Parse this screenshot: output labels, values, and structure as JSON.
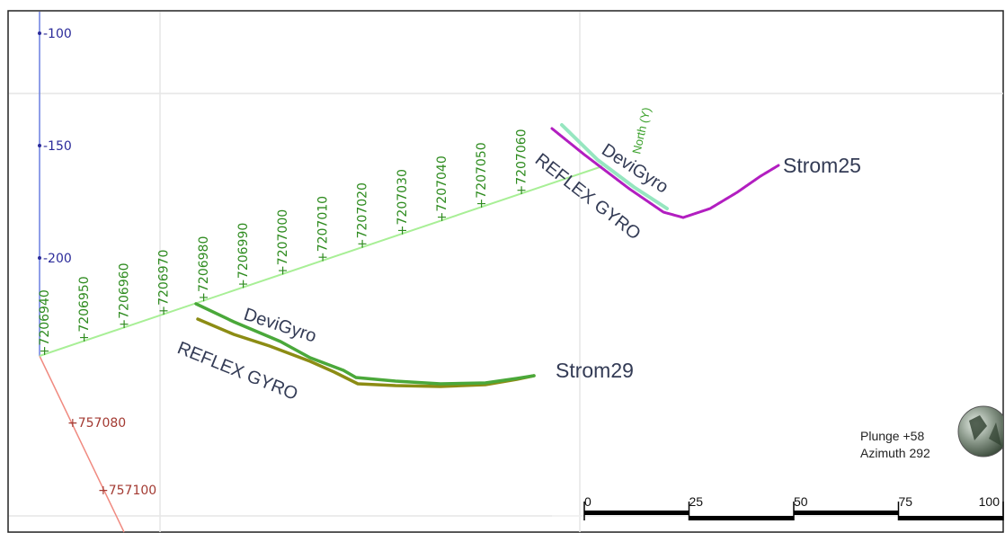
{
  "z_axis": {
    "color": "#2b2b9a",
    "ticks": [
      "-100",
      "-150",
      "-200"
    ]
  },
  "north_axis": {
    "color": "#2e8b1f",
    "label": "North (Y)",
    "ticks": [
      "+7206940",
      "+7206950",
      "+7206960",
      "+7206970",
      "+7206980",
      "+7206990",
      "+7207000",
      "+7207010",
      "+7207020",
      "+7207030",
      "+7207040",
      "+7207050",
      "+7207060"
    ]
  },
  "east_axis": {
    "color": "#a33a32",
    "ticks": [
      "+757080",
      "+757100"
    ]
  },
  "wells": {
    "strom25": {
      "name": "Strom25",
      "label_devigyro": "DeviGyro",
      "label_reflex": "REFLEX GYRO",
      "devigyro_color": "#96e6c0",
      "reflex_color": "#b21ec0"
    },
    "strom29": {
      "name": "Strom29",
      "label_devigyro": "DeviGyro",
      "label_reflex": "REFLEX GYRO",
      "devigyro_color": "#4aa83a",
      "reflex_color": "#8c8c14"
    }
  },
  "orientation": {
    "plunge": "Plunge +58",
    "azimuth": "Azimuth 292"
  },
  "scale_bar": {
    "labels": [
      "0",
      "25",
      "50",
      "75",
      "100"
    ]
  }
}
